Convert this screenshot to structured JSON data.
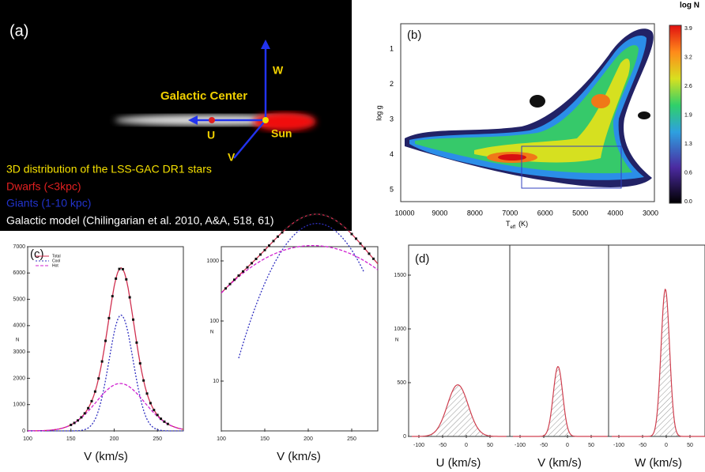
{
  "panel_a": {
    "label": "(a)",
    "axis_w": "W",
    "axis_u": "U",
    "axis_v": "V",
    "galactic_center": "Galactic Center",
    "sun": "Sun",
    "legend": [
      "3D  distribution of the LSS-GAC DR1 stars",
      "Dwarfs (<3kpc)",
      "Giants (1-10 kpc)",
      "Galactic model (Chilingarian et al. 2010, A&A, 518, 61)"
    ]
  },
  "panel_b": {
    "label": "(b)",
    "y_label": "log g",
    "x_label": "T",
    "x_label_sub": "eff",
    "x_label_unit": "(K)",
    "xticks": [
      10000,
      9000,
      8000,
      7000,
      6000,
      5000,
      4000,
      3000
    ],
    "yticks": [
      1,
      2,
      3,
      4,
      5
    ],
    "colorbar_title": "log N",
    "colorbar_ticks": [
      "3.9",
      "3.2",
      "2.6",
      "1.9",
      "1.3",
      "0.6",
      "0.0"
    ]
  },
  "panel_c": {
    "label": "(c)",
    "legend": [
      "Total",
      "Cool",
      "Hot"
    ],
    "y_label": "N",
    "left": {
      "yticks": [
        0,
        1000,
        2000,
        3000,
        4000,
        5000,
        6000,
        7000
      ],
      "xticks": [
        100,
        150,
        200,
        250
      ],
      "x_label": "V (km/s)"
    },
    "right": {
      "yticks": [
        10,
        100,
        1000
      ],
      "xticks": [
        100,
        150,
        200,
        250
      ],
      "x_label": "V (km/s)"
    }
  },
  "panel_d": {
    "label": "(d)",
    "y_label": "N",
    "yticks": [
      0,
      500,
      1000,
      1500
    ],
    "subplots": [
      {
        "xticks": [
          -100,
          -50,
          0,
          50
        ],
        "x_label": "U (km/s)"
      },
      {
        "xticks": [
          -100,
          -50,
          0,
          50
        ],
        "x_label": "V (km/s)"
      },
      {
        "xticks": [
          -100,
          -50,
          0,
          50
        ],
        "x_label": "W (km/s)"
      }
    ]
  }
}
